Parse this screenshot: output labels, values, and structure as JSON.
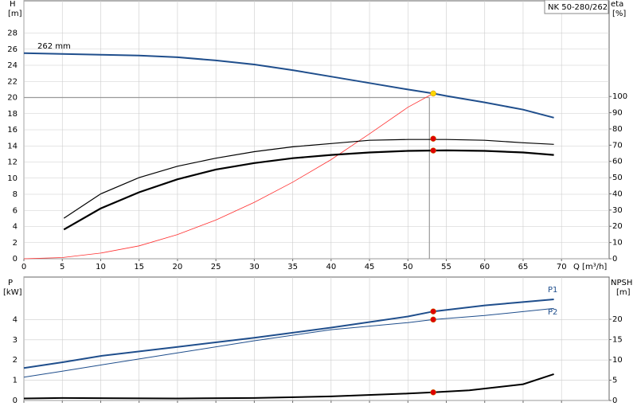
{
  "chart_data": [
    {
      "type": "line",
      "title": "NK 50-280/262",
      "ylabel": "H",
      "yunit": "[m]",
      "y2label": "eta",
      "y2unit": "[%]",
      "xlabel": "Q [m³/h]",
      "xlim": [
        0,
        76.2
      ],
      "xticks": [
        0,
        5,
        10,
        15,
        20,
        25,
        30,
        35,
        40,
        45,
        50,
        55,
        60,
        65,
        70
      ],
      "xtick_labels": true,
      "ylim": [
        0,
        32
      ],
      "yticks": [
        0,
        2,
        4,
        6,
        8,
        10,
        12,
        14,
        16,
        18,
        20,
        22,
        24,
        26,
        28
      ],
      "y2lim": [
        0,
        159
      ],
      "y2ticks": [
        0,
        10,
        20,
        30,
        40,
        50,
        60,
        70,
        80,
        90,
        100
      ],
      "grid": true,
      "crosshair": {
        "x": 52.8,
        "y": 20,
        "color": "#999999"
      },
      "series": [
        {
          "name": "262 mm",
          "color": "#1f4e8c",
          "width": 2,
          "x": [
            0,
            5,
            10,
            15,
            20,
            25,
            30,
            35,
            40,
            45,
            50,
            53.3,
            55,
            60,
            65,
            69
          ],
          "values": [
            25.5,
            25.4,
            25.3,
            25.2,
            25.0,
            24.6,
            24.1,
            23.4,
            22.6,
            21.8,
            21.0,
            20.5,
            20.2,
            19.4,
            18.5,
            17.5
          ]
        },
        {
          "color": "#ff3030",
          "width": 0.8,
          "x": [
            0,
            5,
            10,
            15,
            20,
            25,
            30,
            35,
            40,
            45,
            50,
            53.3
          ],
          "values": [
            0,
            0.15,
            0.7,
            1.6,
            3.0,
            4.8,
            7.0,
            9.5,
            12.3,
            15.5,
            18.8,
            20.5
          ]
        },
        {
          "color": "#000000",
          "width": 1.2,
          "axis": "y2",
          "x": [
            5.2,
            10,
            15,
            20,
            25,
            30,
            35,
            40,
            45,
            50,
            55,
            60,
            65,
            69
          ],
          "values": [
            25,
            40,
            50,
            57,
            62,
            66,
            69,
            71,
            73,
            73.5,
            73.5,
            73,
            71.5,
            70.5
          ]
        },
        {
          "color": "#000000",
          "width": 2.2,
          "axis": "y2",
          "x": [
            5.2,
            10,
            15,
            20,
            25,
            30,
            35,
            40,
            45,
            50,
            55,
            60,
            65,
            69
          ],
          "values": [
            18,
            31,
            41,
            49,
            55,
            59,
            62,
            64,
            65.5,
            66.5,
            66.8,
            66.5,
            65.5,
            64
          ]
        }
      ],
      "points": [
        {
          "x": 53.3,
          "y": 20.5,
          "color": "#ffd700"
        },
        {
          "x": 53.3,
          "y": 74,
          "axis": "y2",
          "color": "#e00000"
        },
        {
          "x": 53.3,
          "y": 66.7,
          "axis": "y2",
          "color": "#e00000"
        }
      ]
    },
    {
      "type": "line",
      "ylabel": "P",
      "yunit": "[kW]",
      "y2label": "NPSH",
      "y2unit": "[m]",
      "xlim": [
        0,
        76.2
      ],
      "xticks": [
        0,
        5,
        10,
        15,
        20,
        25,
        30,
        35,
        40,
        45,
        50,
        55,
        60,
        65,
        70
      ],
      "xtick_labels": false,
      "ylim": [
        0,
        6.1
      ],
      "yticks": [
        0,
        1,
        2,
        3,
        4
      ],
      "y2lim": [
        0,
        30.4
      ],
      "y2ticks": [
        0,
        5,
        10,
        15,
        20
      ],
      "grid": true,
      "series": [
        {
          "name": "P1",
          "color": "#1f4e8c",
          "width": 2,
          "x": [
            0,
            5.2,
            10,
            20,
            30,
            40,
            50,
            53.3,
            60,
            69
          ],
          "values": [
            1.6,
            1.9,
            2.2,
            2.65,
            3.1,
            3.6,
            4.15,
            4.4,
            4.7,
            5.0
          ]
        },
        {
          "name": "P2",
          "color": "#1f4e8c",
          "width": 1,
          "x": [
            0,
            5,
            10,
            20,
            30,
            40,
            50,
            53.3,
            60,
            69
          ],
          "values": [
            1.15,
            1.45,
            1.75,
            2.35,
            2.95,
            3.5,
            3.85,
            4.0,
            4.2,
            4.55
          ]
        },
        {
          "color": "#000000",
          "width": 2,
          "axis": "y2",
          "x": [
            0,
            5,
            20,
            30,
            40,
            50,
            53.3,
            58,
            65,
            69
          ],
          "values": [
            0.5,
            0.6,
            0.5,
            0.6,
            1.0,
            1.7,
            2.0,
            2.5,
            4.0,
            6.5
          ]
        }
      ],
      "points": [
        {
          "x": 53.3,
          "y": 4.4,
          "color": "#e00000"
        },
        {
          "x": 53.3,
          "y": 4.0,
          "color": "#e00000"
        },
        {
          "x": 53.3,
          "y": 2.0,
          "axis": "y2",
          "color": "#e00000"
        }
      ]
    }
  ]
}
